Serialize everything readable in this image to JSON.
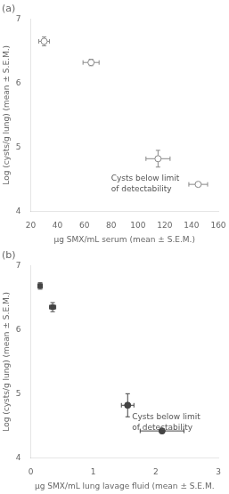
{
  "chart_data": [
    {
      "type": "scatter",
      "title": "(a)",
      "xlabel": "μg SMX/mL serum (mean ± S.E.M.)",
      "ylabel": "Log (cysts/g lung) (mean ± S.E.M.)",
      "xlim": [
        20,
        160
      ],
      "ylim": [
        4,
        7
      ],
      "xticks": [
        20,
        40,
        60,
        80,
        100,
        120,
        140,
        160
      ],
      "yticks": [
        4,
        5,
        6,
        7
      ],
      "grid": false,
      "series": [
        {
          "marker": "open_circle",
          "color": "#888888",
          "x": [
            30,
            65,
            115,
            145
          ],
          "values": [
            6.65,
            6.32,
            4.82,
            4.42
          ],
          "xerr": [
            4,
            6,
            9,
            7
          ],
          "yerr": [
            0.07,
            0.05,
            0.13,
            0.0
          ]
        }
      ],
      "annotations": [
        {
          "text": "Cysts below limit\nof detectability",
          "x": 80,
          "y": 4.42
        }
      ]
    },
    {
      "type": "scatter",
      "title": "(b)",
      "xlabel": "μg SMX/mL lung lavage fluid (mean ± S.E.M.",
      "ylabel": "Log (cysts/g lung) (mean ± S.E.M.)",
      "xlim": [
        0,
        3
      ],
      "ylim": [
        4,
        7
      ],
      "xticks": [
        0,
        1,
        2,
        3
      ],
      "yticks": [
        4,
        5,
        6,
        7
      ],
      "grid": false,
      "series": [
        {
          "marker": "square",
          "color": "#444444",
          "x": [
            0.15,
            0.35
          ],
          "values": [
            6.68,
            6.35
          ],
          "xerr": [
            0.03,
            0.05
          ],
          "yerr": [
            0.05,
            0.07
          ]
        },
        {
          "marker": "circle",
          "color": "#444444",
          "x": [
            1.55,
            2.1
          ],
          "values": [
            4.82,
            4.42
          ],
          "xerr": [
            0.1,
            0.35
          ],
          "yerr": [
            0.18,
            0.0
          ]
        }
      ],
      "annotations": [
        {
          "text": "Cysts below limit\nof detectability",
          "x": 1.62,
          "y": 4.55
        }
      ]
    }
  ]
}
